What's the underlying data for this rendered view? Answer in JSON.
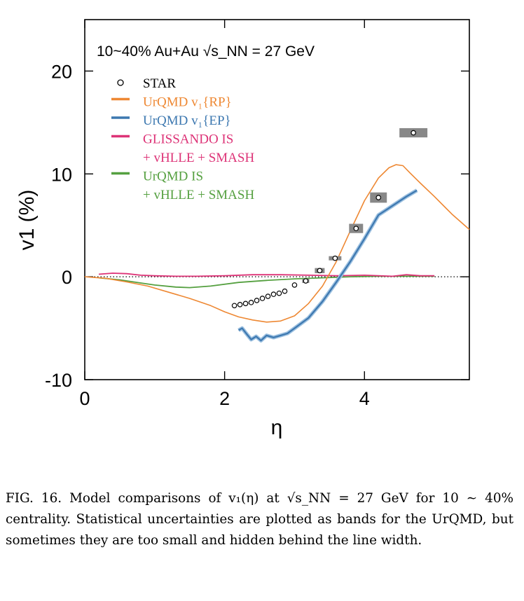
{
  "chart_data": {
    "type": "line",
    "title": "10~40% Au+Au √s_NN = 27 GeV",
    "xlabel": "η",
    "ylabel": "v1 (%)",
    "xlim": [
      0,
      5.5
    ],
    "ylim": [
      -10,
      25
    ],
    "xticks": [
      0,
      2,
      4
    ],
    "yticks": [
      -10,
      0,
      10,
      20
    ],
    "xtick_labels": [
      "0",
      "2",
      "4"
    ],
    "ytick_labels": [
      "-10",
      "0",
      "10",
      "20"
    ],
    "legend_position": "top-left",
    "reference_line": 0,
    "series": [
      {
        "name": "STAR",
        "kind": "points",
        "color": "#000000",
        "x": [
          2.14,
          2.22,
          2.3,
          2.38,
          2.46,
          2.54,
          2.62,
          2.7,
          2.78,
          2.86,
          3.0,
          3.16,
          3.36,
          3.58,
          3.88,
          4.2,
          4.7
        ],
        "y": [
          -2.8,
          -2.7,
          -2.6,
          -2.5,
          -2.3,
          -2.1,
          -1.9,
          -1.7,
          -1.6,
          -1.4,
          -0.8,
          -0.4,
          0.6,
          1.8,
          4.7,
          7.7,
          14.0
        ],
        "box_half_width": [
          0.0,
          0.0,
          0.0,
          0.0,
          0.0,
          0.0,
          0.0,
          0.0,
          0.0,
          0.0,
          0.0,
          0.05,
          0.07,
          0.09,
          0.1,
          0.12,
          0.2
        ],
        "box_half_height": [
          0.0,
          0.0,
          0.0,
          0.0,
          0.0,
          0.0,
          0.0,
          0.0,
          0.0,
          0.0,
          0.0,
          0.2,
          0.25,
          0.2,
          0.45,
          0.5,
          0.45
        ]
      },
      {
        "name": "UrQMD v1{RP}",
        "color": "#ee8833",
        "x": [
          0.0,
          0.3,
          0.6,
          0.9,
          1.2,
          1.5,
          1.8,
          2.0,
          2.2,
          2.4,
          2.6,
          2.8,
          3.0,
          3.2,
          3.4,
          3.6,
          3.8,
          4.0,
          4.2,
          4.35,
          4.45,
          4.55,
          4.65,
          4.8,
          5.0,
          5.25,
          5.5
        ],
        "y": [
          0.0,
          -0.15,
          -0.5,
          -0.9,
          -1.5,
          -2.1,
          -2.8,
          -3.4,
          -3.9,
          -4.2,
          -4.4,
          -4.3,
          -3.8,
          -2.6,
          -0.9,
          1.5,
          4.5,
          7.4,
          9.6,
          10.6,
          10.9,
          10.8,
          10.1,
          9.1,
          7.8,
          6.1,
          4.6
        ]
      },
      {
        "name": "UrQMD v1{EP}",
        "color": "#3d78b0",
        "x": [
          2.2,
          2.25,
          2.32,
          2.38,
          2.45,
          2.52,
          2.6,
          2.7,
          2.8,
          2.9,
          3.0,
          3.2,
          3.4,
          3.6,
          3.8,
          4.0,
          4.2,
          4.4,
          4.6,
          4.75
        ],
        "y": [
          -5.2,
          -5.0,
          -5.6,
          -6.1,
          -5.8,
          -6.2,
          -5.7,
          -5.9,
          -5.7,
          -5.5,
          -5.0,
          -4.0,
          -2.4,
          -0.5,
          1.5,
          3.7,
          6.0,
          6.9,
          7.8,
          8.4
        ]
      },
      {
        "name": "GLISSANDO IS + vHLLE + SMASH",
        "color": "#dd3377",
        "x": [
          0.2,
          0.4,
          0.6,
          0.8,
          1.0,
          1.3,
          1.6,
          2.0,
          2.4,
          2.8,
          3.2,
          3.6,
          4.0,
          4.4,
          4.6,
          4.8,
          5.0
        ],
        "y": [
          0.25,
          0.35,
          0.3,
          0.15,
          0.1,
          0.05,
          0.05,
          0.1,
          0.2,
          0.2,
          0.15,
          0.1,
          0.15,
          0.05,
          0.2,
          0.1,
          0.1
        ]
      },
      {
        "name": "UrQMD IS + vHLLE + SMASH",
        "color": "#55a040",
        "x": [
          0.2,
          0.5,
          0.8,
          1.0,
          1.3,
          1.5,
          1.8,
          2.2,
          2.6,
          3.0,
          3.4,
          3.8,
          4.2,
          4.6,
          5.0
        ],
        "y": [
          -0.1,
          -0.3,
          -0.6,
          -0.8,
          -1.0,
          -1.05,
          -0.9,
          -0.55,
          -0.35,
          -0.2,
          -0.1,
          0.0,
          0.05,
          0.05,
          0.05
        ]
      }
    ]
  },
  "legend": {
    "entries": [
      {
        "label_lines": [
          "STAR"
        ],
        "color": "#000000",
        "marker": "circle"
      },
      {
        "label_lines": [
          "UrQMD v₁{RP}"
        ],
        "color": "#ee8833",
        "marker": "dash"
      },
      {
        "label_lines": [
          "UrQMD v₁{EP}"
        ],
        "color": "#3d78b0",
        "marker": "dash"
      },
      {
        "label_lines": [
          "GLISSANDO IS",
          "+ vHLLE + SMASH"
        ],
        "color": "#dd3377",
        "marker": "dash"
      },
      {
        "label_lines": [
          "UrQMD IS",
          "+ vHLLE + SMASH"
        ],
        "color": "#55a040",
        "marker": "dash"
      }
    ]
  },
  "caption": {
    "text": "FIG. 16. Model comparisons of v₁(η) at √s_NN = 27 GeV for 10 ∼ 40% centrality. Statistical uncertainties are plotted as bands for the UrQMD, but sometimes they are too small and hidden behind the line width."
  }
}
